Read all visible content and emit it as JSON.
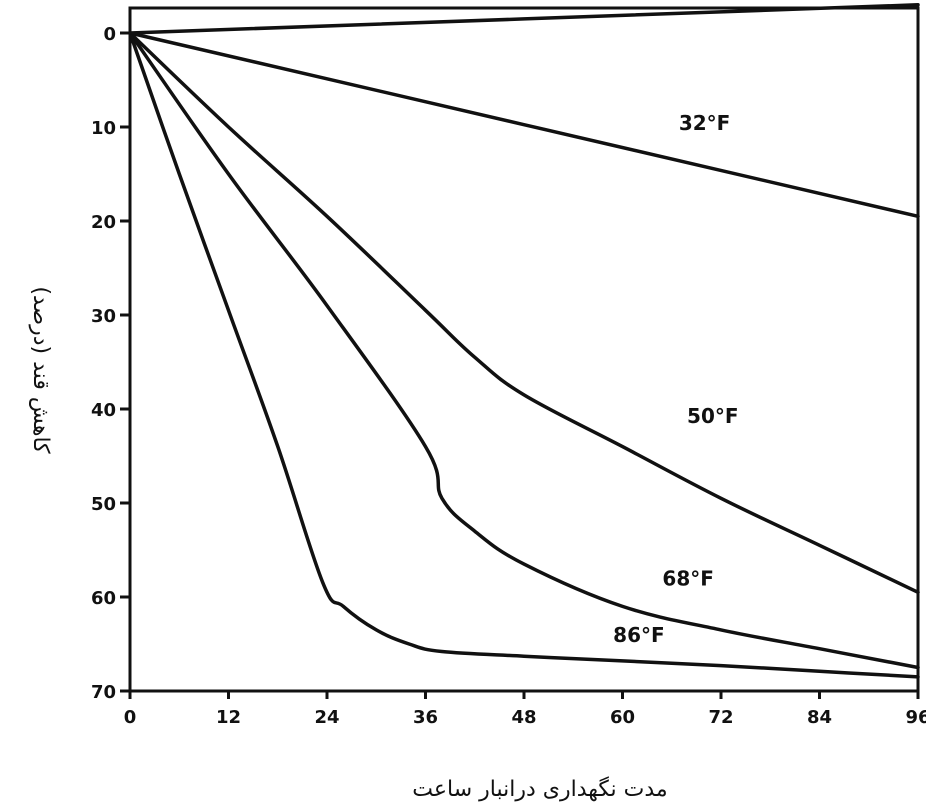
{
  "chart_data": {
    "type": "line",
    "title": "",
    "xlabel": "مدت نگهداری درانبار ساعت",
    "ylabel": "کاهش قند (درصد)",
    "xlim": [
      0,
      96
    ],
    "ylim": [
      0,
      70
    ],
    "y_inverted": true,
    "grid": false,
    "x_ticks": [
      "0",
      "12",
      "24",
      "36",
      "48",
      "60",
      "72",
      "84",
      "96"
    ],
    "y_ticks": [
      "0",
      "10",
      "20",
      "30",
      "40",
      "50",
      "60",
      "70"
    ],
    "series": [
      {
        "name": "32°F",
        "label_text": "32°F",
        "x": [
          0,
          96
        ],
        "y": [
          0,
          19.5
        ]
      },
      {
        "name": "50°F",
        "label_text": "50°F",
        "x": [
          0,
          12,
          24,
          36,
          42,
          48,
          60,
          72,
          84,
          96
        ],
        "y": [
          0,
          10,
          19.5,
          29.5,
          34.5,
          38.5,
          44,
          49.5,
          54.5,
          59.5
        ]
      },
      {
        "name": "68°F",
        "label_text": "68°F",
        "x": [
          0,
          12,
          24,
          36,
          38,
          42,
          48,
          60,
          72,
          84,
          96
        ],
        "y": [
          0,
          15,
          29,
          44,
          49.5,
          53,
          56.5,
          61,
          63.5,
          65.5,
          67.5
        ]
      },
      {
        "name": "86°F",
        "label_text": "86°F",
        "x": [
          0,
          6,
          12,
          18,
          23.5,
          26,
          30,
          34,
          38,
          48,
          60,
          72,
          84,
          96
        ],
        "y": [
          0,
          15,
          29.5,
          44,
          58.5,
          61,
          63.5,
          65,
          65.8,
          66.3,
          66.8,
          67.3,
          67.9,
          68.5
        ]
      },
      {
        "name": "",
        "label_text": "",
        "x": [
          0,
          96
        ],
        "y": [
          0,
          -3
        ]
      }
    ]
  }
}
